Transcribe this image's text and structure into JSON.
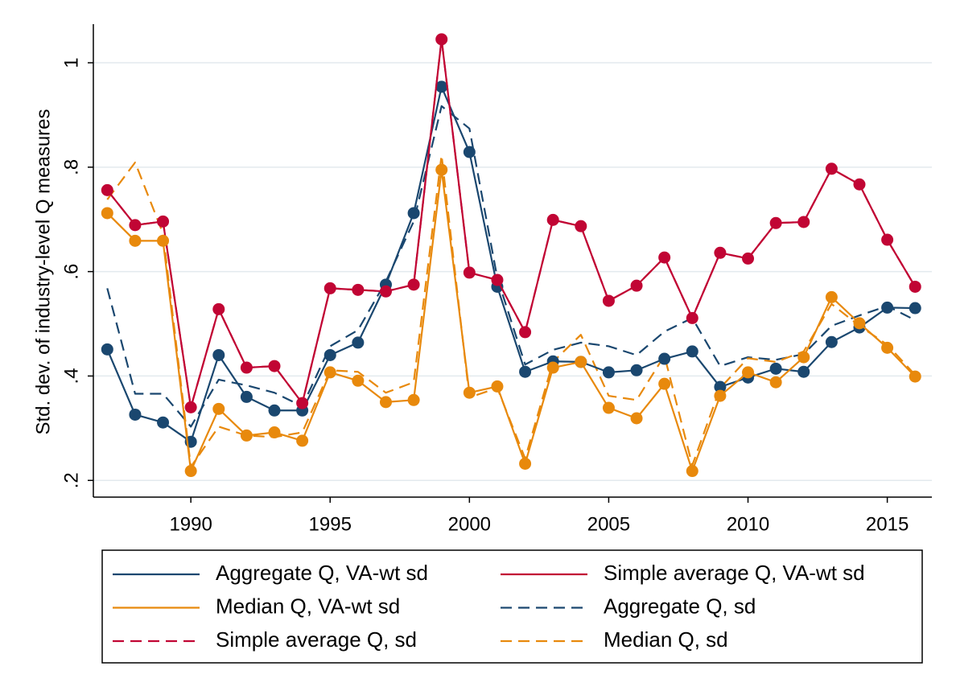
{
  "chart_data": {
    "type": "line",
    "ylabel": "Std. dev. of industry-level Q measures",
    "x": [
      1987,
      1988,
      1989,
      1990,
      1991,
      1992,
      1993,
      1994,
      1995,
      1996,
      1997,
      1998,
      1999,
      2000,
      2001,
      2002,
      2003,
      2004,
      2005,
      2006,
      2007,
      2008,
      2009,
      2010,
      2011,
      2012,
      2013,
      2014,
      2015,
      2016
    ],
    "xlim": [
      1986.5,
      2016.6
    ],
    "xticks": [
      1990,
      1995,
      2000,
      2005,
      2010,
      2015
    ],
    "ylim": [
      0.168,
      1.074
    ],
    "yticks": [
      {
        "value": 0.2,
        "label": ".2"
      },
      {
        "value": 0.4,
        "label": ".4"
      },
      {
        "value": 0.6,
        "label": ".6"
      },
      {
        "value": 0.8,
        "label": ".8"
      },
      1
    ],
    "grid": true,
    "series": [
      {
        "name": "Aggregate Q, VA-wt sd",
        "color": "#1a476f",
        "dash": false,
        "markers": true,
        "values": [
          0.451,
          0.326,
          0.311,
          0.274,
          0.44,
          0.36,
          0.334,
          0.334,
          0.44,
          0.464,
          0.575,
          0.712,
          0.954,
          0.829,
          0.571,
          0.408,
          0.428,
          0.427,
          0.407,
          0.411,
          0.433,
          0.447,
          0.379,
          0.397,
          0.414,
          0.408,
          0.465,
          0.493,
          0.531,
          0.53
        ]
      },
      {
        "name": "Simple average Q, VA-wt sd",
        "color": "#c10534",
        "dash": false,
        "markers": true,
        "values": [
          0.756,
          0.689,
          0.696,
          0.34,
          0.528,
          0.416,
          0.419,
          0.348,
          0.568,
          0.565,
          0.562,
          0.575,
          1.045,
          0.598,
          0.584,
          0.484,
          0.699,
          0.687,
          0.544,
          0.573,
          0.627,
          0.511,
          0.636,
          0.625,
          0.693,
          0.695,
          0.797,
          0.767,
          0.661,
          0.571
        ]
      },
      {
        "name": "Median Q, VA-wt sd",
        "color": "#e8890c",
        "dash": false,
        "markers": true,
        "values": [
          0.712,
          0.659,
          0.659,
          0.218,
          0.337,
          0.286,
          0.292,
          0.276,
          0.407,
          0.391,
          0.35,
          0.354,
          0.795,
          0.368,
          0.38,
          0.232,
          0.416,
          0.427,
          0.339,
          0.319,
          0.385,
          0.218,
          0.362,
          0.407,
          0.388,
          0.436,
          0.551,
          0.501,
          0.454,
          0.399
        ]
      },
      {
        "name": "Aggregate Q, sd",
        "color": "#1a476f",
        "dash": true,
        "markers": false,
        "values": [
          0.568,
          0.366,
          0.366,
          0.303,
          0.393,
          0.382,
          0.368,
          0.342,
          0.457,
          0.488,
          0.581,
          0.696,
          0.917,
          0.874,
          0.588,
          0.422,
          0.45,
          0.464,
          0.457,
          0.44,
          0.485,
          0.511,
          0.419,
          0.436,
          0.431,
          0.442,
          0.496,
          0.516,
          0.534,
          0.507
        ]
      },
      {
        "name": "Simple average Q, sd",
        "color": "#c10534",
        "dash": true,
        "markers": false,
        "values": [
          0.756,
          0.689,
          0.696,
          0.34,
          0.528,
          0.416,
          0.419,
          0.348,
          0.568,
          0.565,
          0.562,
          0.575,
          1.045,
          0.598,
          0.584,
          0.484,
          0.699,
          0.687,
          0.544,
          0.573,
          0.627,
          0.511,
          0.636,
          0.625,
          0.693,
          0.695,
          0.797,
          0.767,
          0.661,
          0.571
        ]
      },
      {
        "name": "Median Q, sd",
        "color": "#e8890c",
        "dash": true,
        "markers": false,
        "values": [
          0.738,
          0.809,
          0.673,
          0.226,
          0.303,
          0.286,
          0.283,
          0.292,
          0.411,
          0.408,
          0.368,
          0.388,
          0.823,
          0.359,
          0.377,
          0.242,
          0.427,
          0.479,
          0.362,
          0.354,
          0.439,
          0.229,
          0.377,
          0.434,
          0.427,
          0.447,
          0.538,
          0.496,
          0.46,
          0.402
        ]
      }
    ]
  }
}
